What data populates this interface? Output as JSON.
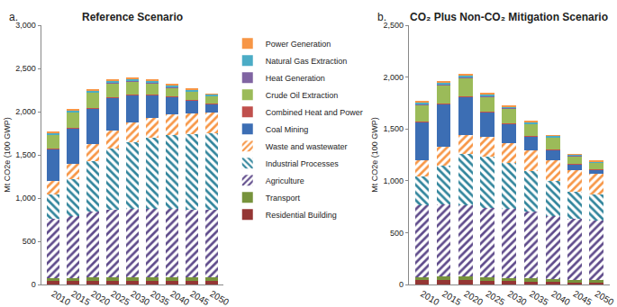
{
  "chart_data": [
    {
      "type": "bar",
      "stacked": true,
      "grid": false,
      "legend": "right",
      "annotation": "a.",
      "title": "Reference Scenario",
      "y_label": "Mt CO2e (100 GWP)",
      "categories": [
        "2010",
        "2015",
        "2020",
        "2025",
        "2030",
        "2035",
        "2040",
        "2045",
        "2050"
      ],
      "ylim": [
        0,
        3000
      ],
      "yticks": [
        0,
        500,
        {
          "value": 1000,
          "label": "1,000"
        },
        {
          "value": 1500,
          "label": "1,500"
        },
        {
          "value": 2000,
          "label": "2,000"
        },
        {
          "value": 2500,
          "label": "2,500"
        },
        {
          "value": 3000,
          "label": "3,000"
        }
      ],
      "series": [
        {
          "name": "Residential Building",
          "color": "#943634",
          "values": [
            40,
            40,
            40,
            40,
            40,
            40,
            40,
            40,
            40
          ]
        },
        {
          "name": "Transport",
          "color": "#77933c",
          "values": [
            30,
            35,
            40,
            45,
            45,
            45,
            45,
            45,
            45
          ]
        },
        {
          "name": "Agriculture",
          "color": "#5f4b8b",
          "marker": "/",
          "values": [
            690,
            715,
            760,
            775,
            785,
            785,
            785,
            775,
            775
          ]
        },
        {
          "name": "Industrial Processes",
          "color": "#31859c",
          "marker": "\\",
          "values": [
            280,
            430,
            590,
            710,
            780,
            830,
            860,
            880,
            890
          ]
        },
        {
          "name": "Waste and wastewater",
          "color": "#f79646",
          "marker": "/",
          "values": [
            160,
            180,
            190,
            210,
            230,
            230,
            240,
            240,
            240
          ]
        },
        {
          "name": "Coal Mining",
          "color": "#3c6eb4",
          "values": [
            370,
            410,
            420,
            380,
            310,
            260,
            200,
            150,
            100
          ]
        },
        {
          "name": "Combined Heat and Power",
          "color": "#c0504d",
          "values": [
            5,
            5,
            5,
            5,
            5,
            5,
            5,
            5,
            5
          ]
        },
        {
          "name": "Crude Oil Extraction",
          "color": "#9bbb59",
          "values": [
            155,
            175,
            175,
            165,
            155,
            135,
            105,
            95,
            85
          ]
        },
        {
          "name": "Heat Generation",
          "color": "#8064a2",
          "values": [
            3,
            3,
            3,
            3,
            3,
            3,
            3,
            3,
            3
          ]
        },
        {
          "name": "Natural Gas Extraction",
          "color": "#4bacc6",
          "values": [
            25,
            25,
            25,
            25,
            25,
            25,
            20,
            20,
            15
          ]
        },
        {
          "name": "Power Generation",
          "color": "#f79646",
          "values": [
            10,
            10,
            10,
            10,
            10,
            10,
            10,
            10,
            10
          ]
        }
      ]
    },
    {
      "type": "bar",
      "stacked": true,
      "grid": false,
      "annotation": "b.",
      "title": "CO₂ Plus Non-CO₂ Mitigation Scenario",
      "y_label": "Mt CO2e (100 GWP)",
      "categories": [
        "2010",
        "2015",
        "2020",
        "2025",
        "2030",
        "2035",
        "2040",
        "2045",
        "2050"
      ],
      "ylim": [
        0,
        2500
      ],
      "yticks": [
        0,
        500,
        {
          "value": 1000,
          "label": "1,000"
        },
        {
          "value": 1500,
          "label": "1,500"
        },
        {
          "value": 2000,
          "label": "2,000"
        },
        {
          "value": 2500,
          "label": "2,500"
        }
      ],
      "series": [
        {
          "name": "Residential Building",
          "color": "#943634",
          "values": [
            40,
            40,
            40,
            35,
            35,
            30,
            25,
            20,
            20
          ]
        },
        {
          "name": "Transport",
          "color": "#77933c",
          "values": [
            30,
            35,
            35,
            35,
            30,
            30,
            25,
            25,
            25
          ]
        },
        {
          "name": "Agriculture",
          "color": "#5f4b8b",
          "marker": "/",
          "values": [
            690,
            695,
            685,
            670,
            665,
            640,
            610,
            585,
            575
          ]
        },
        {
          "name": "Industrial Processes",
          "color": "#31859c",
          "marker": "\\",
          "values": [
            280,
            380,
            500,
            490,
            440,
            390,
            340,
            260,
            250
          ]
        },
        {
          "name": "Waste and wastewater",
          "color": "#f79646",
          "marker": "/",
          "values": [
            160,
            180,
            180,
            190,
            190,
            200,
            200,
            210,
            200
          ]
        },
        {
          "name": "Coal Mining",
          "color": "#3c6eb4",
          "values": [
            370,
            410,
            370,
            240,
            190,
            140,
            100,
            60,
            40
          ]
        },
        {
          "name": "Combined Heat and Power",
          "color": "#c0504d",
          "values": [
            5,
            5,
            5,
            5,
            5,
            5,
            5,
            5,
            5
          ]
        },
        {
          "name": "Crude Oil Extraction",
          "color": "#9bbb59",
          "values": [
            155,
            175,
            175,
            145,
            145,
            115,
            115,
            75,
            60
          ]
        },
        {
          "name": "Heat Generation",
          "color": "#8064a2",
          "values": [
            3,
            3,
            3,
            3,
            3,
            3,
            3,
            3,
            3
          ]
        },
        {
          "name": "Natural Gas Extraction",
          "color": "#4bacc6",
          "values": [
            25,
            25,
            25,
            20,
            15,
            15,
            10,
            10,
            10
          ]
        },
        {
          "name": "Power Generation",
          "color": "#f79646",
          "values": [
            10,
            10,
            10,
            10,
            10,
            10,
            5,
            5,
            5
          ]
        }
      ]
    }
  ]
}
